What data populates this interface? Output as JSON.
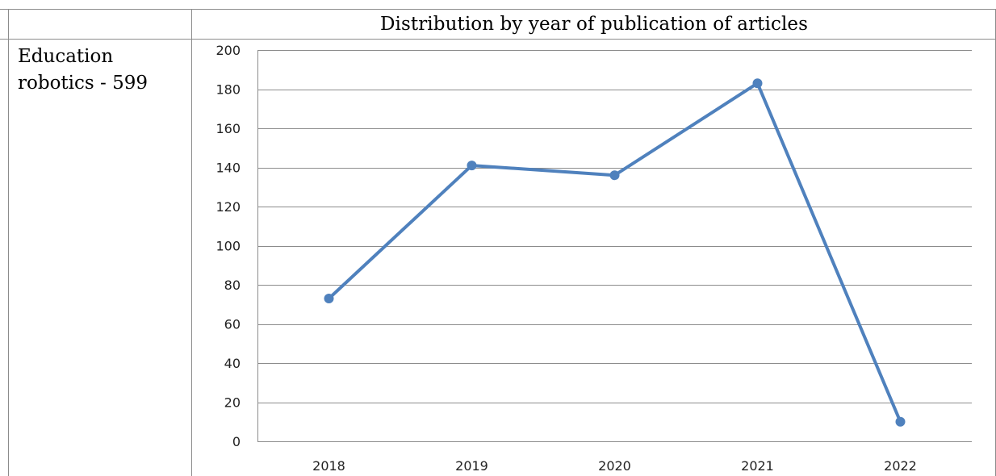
{
  "table": {
    "header_title": "Distribution by year of publication of articles",
    "row_label": "Education robotics - 599"
  },
  "chart_data": {
    "type": "line",
    "title": "",
    "xlabel": "",
    "ylabel": "",
    "categories": [
      "2018",
      "2019",
      "2020",
      "2021",
      "2022"
    ],
    "series": [
      {
        "values": [
          73,
          141,
          136,
          183,
          10
        ],
        "color": "#4f81bd"
      }
    ],
    "ylim": [
      0,
      200
    ],
    "yticks": [
      0,
      20,
      40,
      60,
      80,
      100,
      120,
      140,
      160,
      180,
      200
    ],
    "grid": true,
    "legend": "none",
    "markers": true
  }
}
